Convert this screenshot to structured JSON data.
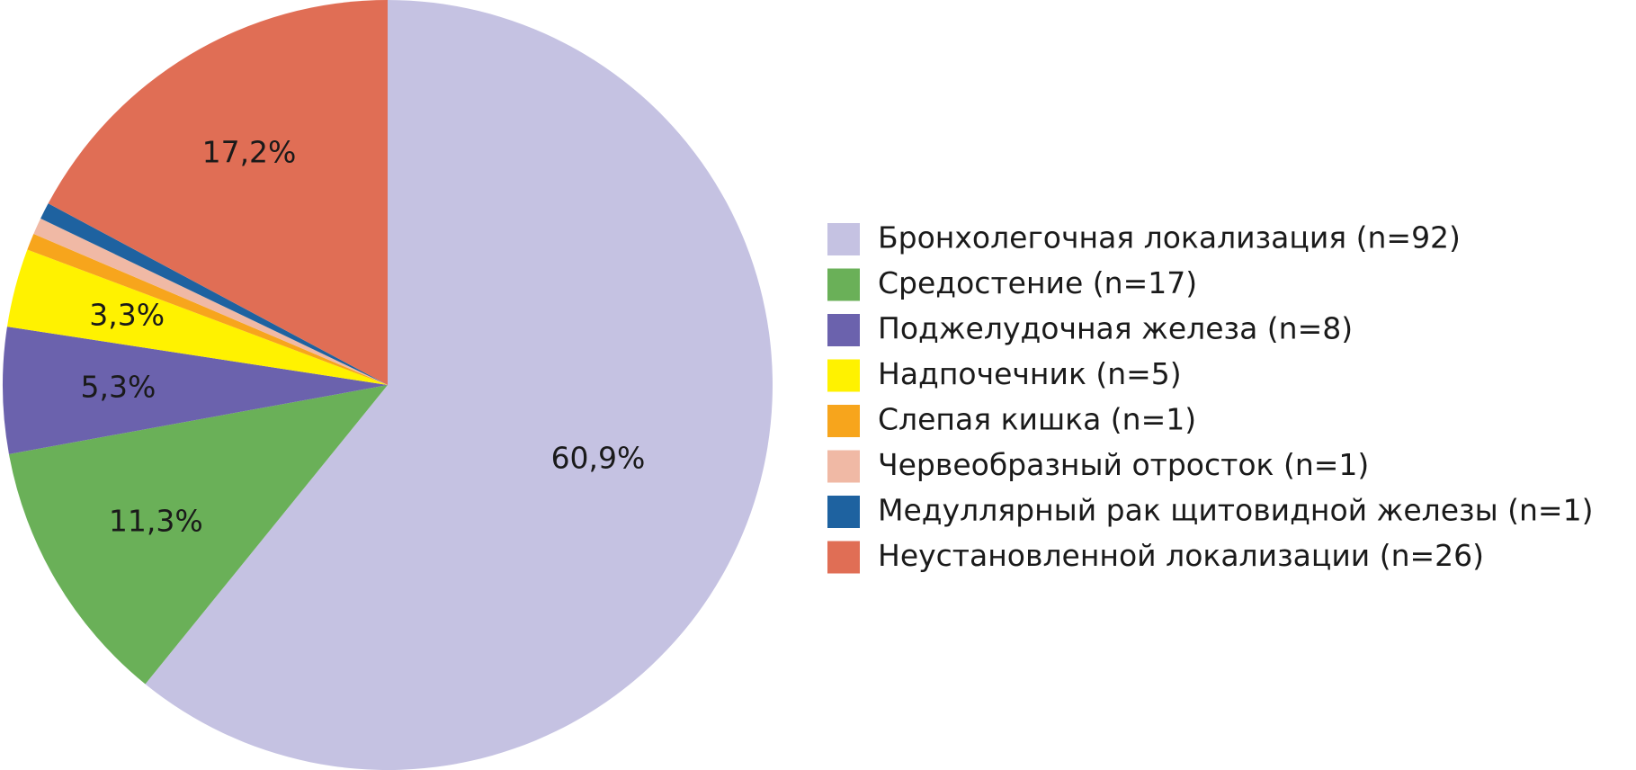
{
  "chart_data": {
    "type": "pie",
    "categories": [
      "Бронхолегочная локализация (n=92)",
      "Средостение (n=17)",
      "Поджелудочная железа (n=8)",
      "Надпочечник (n=5)",
      "Слепая кишка (n=1)",
      "Червеобразный отросток (n=1)",
      "Медуллярный рак щитовидной железы (n=1)",
      "Неустановленной локализации (n=26)"
    ],
    "values": [
      60.9,
      11.3,
      5.3,
      3.3,
      0.7,
      0.7,
      0.7,
      17.2
    ],
    "value_labels": [
      "60,9%",
      "11,3%",
      "5,3%",
      "3,3%",
      null,
      null,
      null,
      "17,2%"
    ],
    "colors": [
      "#c5c2e2",
      "#6ab058",
      "#6b62ad",
      "#fff200",
      "#f7a51c",
      "#f0b9a5",
      "#1e62a0",
      "#e06e55"
    ],
    "legend": "right"
  }
}
